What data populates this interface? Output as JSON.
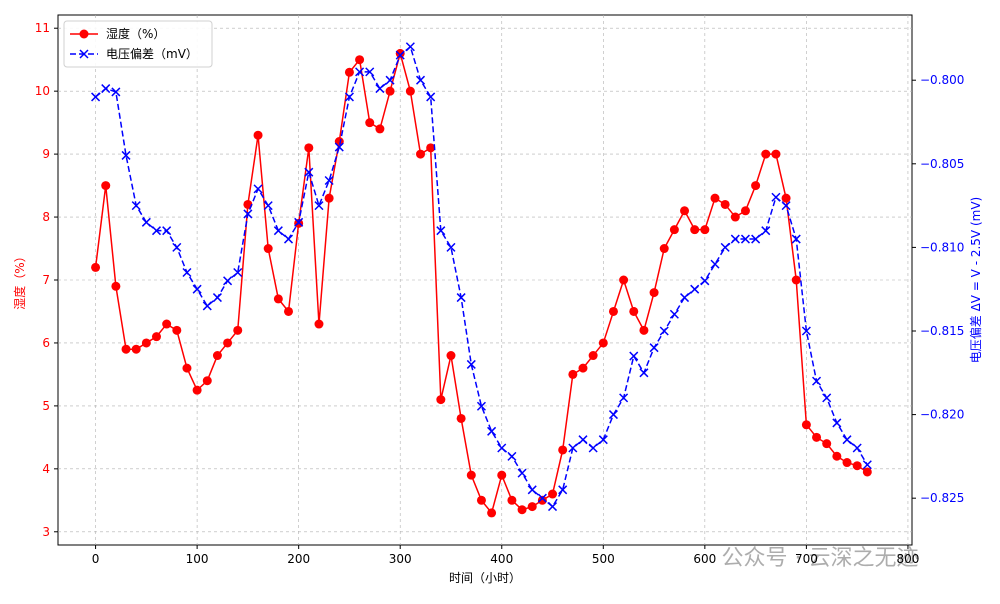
{
  "chart_data": {
    "type": "line",
    "x_label": "时间（小时）",
    "y_label": "湿度（%）",
    "y2_label": "电压偏差 ΔV = V - 2.5V (mV)",
    "watermark": "公众号 · 云深之无迹",
    "x": [
      0,
      10,
      20,
      30,
      40,
      50,
      60,
      70,
      80,
      90,
      100,
      110,
      120,
      130,
      140,
      150,
      160,
      170,
      180,
      190,
      200,
      210,
      220,
      230,
      240,
      250,
      260,
      270,
      280,
      290,
      300,
      310,
      320,
      330,
      340,
      350,
      360,
      370,
      380,
      390,
      400,
      410,
      420,
      430,
      440,
      450,
      460,
      470,
      480,
      490,
      500,
      510,
      520,
      530,
      540,
      550,
      560,
      570,
      580,
      590,
      600,
      610,
      620,
      630,
      640,
      650,
      660,
      670,
      680,
      690,
      700,
      710,
      720,
      730,
      740,
      750,
      760
    ],
    "xlim": [
      -37,
      804
    ],
    "xticks": [
      0,
      100,
      200,
      300,
      400,
      500,
      600,
      700,
      800
    ],
    "ylim": [
      2.79,
      11.21
    ],
    "yticks": [
      3,
      4,
      5,
      6,
      7,
      8,
      9,
      10,
      11
    ],
    "y2lim": [
      -0.8278,
      -0.7961
    ],
    "y2ticks": [
      {
        "value": -0.825,
        "label": "−0.825"
      },
      {
        "value": -0.82,
        "label": "−0.820"
      },
      {
        "value": -0.815,
        "label": "−0.815"
      },
      {
        "value": -0.81,
        "label": "−0.810"
      },
      {
        "value": -0.805,
        "label": "−0.805"
      },
      {
        "value": -0.8,
        "label": "−0.800"
      }
    ],
    "grid": true,
    "legend": "upper left",
    "series": [
      {
        "name": "湿度（%）",
        "color": "#ff0000",
        "marker": "o",
        "values": [
          7.2,
          8.5,
          6.9,
          5.9,
          5.9,
          6.0,
          6.1,
          6.3,
          6.2,
          5.6,
          5.25,
          5.4,
          5.8,
          6.0,
          6.2,
          8.2,
          9.3,
          7.5,
          6.7,
          6.5,
          7.9,
          9.1,
          6.3,
          8.3,
          9.2,
          10.3,
          10.5,
          9.5,
          9.4,
          10.0,
          10.6,
          10.0,
          9.0,
          9.1,
          5.1,
          5.8,
          4.8,
          3.9,
          3.5,
          3.3,
          3.9,
          3.5,
          3.35,
          3.4,
          3.5,
          3.6,
          4.3,
          5.5,
          5.6,
          5.8,
          6.0,
          6.5,
          7.0,
          6.5,
          6.2,
          6.8,
          7.5,
          7.8,
          8.1,
          7.8,
          7.8,
          8.3,
          8.2,
          8.0,
          8.1,
          8.5,
          9.0,
          9.0,
          8.3,
          7.0,
          4.7,
          4.5,
          4.4,
          4.2,
          4.1,
          4.05,
          3.95
        ]
      },
      {
        "name": "电压偏差（mV）",
        "color": "#0000ff",
        "marker": "x",
        "axis": "y2",
        "values": [
          -0.801,
          -0.8005,
          -0.8007,
          -0.8045,
          -0.8075,
          -0.8085,
          -0.809,
          -0.809,
          -0.81,
          -0.8115,
          -0.8125,
          -0.8135,
          -0.813,
          -0.812,
          -0.8115,
          -0.808,
          -0.8065,
          -0.8075,
          -0.809,
          -0.8095,
          -0.8085,
          -0.8055,
          -0.8075,
          -0.806,
          -0.804,
          -0.801,
          -0.7995,
          -0.7995,
          -0.8005,
          -0.8,
          -0.7985,
          -0.798,
          -0.8,
          -0.801,
          -0.809,
          -0.81,
          -0.813,
          -0.817,
          -0.8195,
          -0.821,
          -0.822,
          -0.8225,
          -0.8235,
          -0.8245,
          -0.825,
          -0.8255,
          -0.8245,
          -0.822,
          -0.8215,
          -0.822,
          -0.8215,
          -0.82,
          -0.819,
          -0.8165,
          -0.8175,
          -0.816,
          -0.815,
          -0.814,
          -0.813,
          -0.8125,
          -0.812,
          -0.811,
          -0.81,
          -0.8095,
          -0.8095,
          -0.8095,
          -0.809,
          -0.807,
          -0.8075,
          -0.8095,
          -0.815,
          -0.818,
          -0.819,
          -0.8205,
          -0.8215,
          -0.822,
          -0.823
        ]
      }
    ]
  }
}
